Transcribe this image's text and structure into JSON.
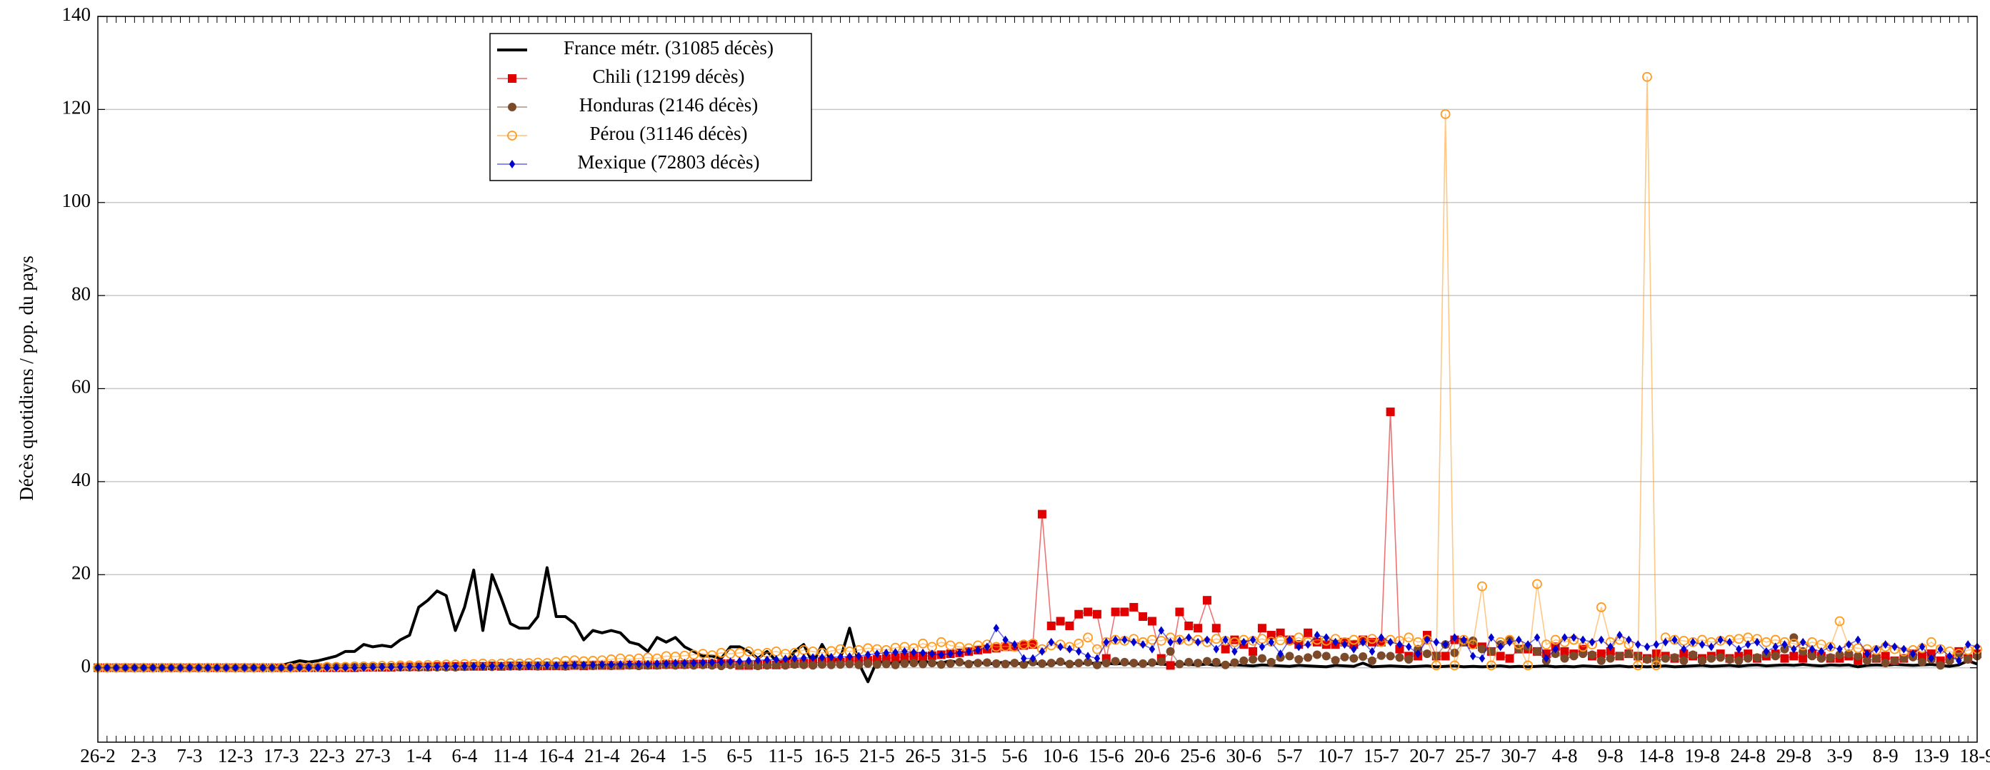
{
  "chart_data": {
    "type": "line",
    "ylabel": "Décès quotidiens / pop. du pays",
    "categories": [
      "26-2",
      null,
      null,
      null,
      null,
      "2-3",
      null,
      null,
      null,
      null,
      "7-3",
      null,
      null,
      null,
      null,
      "12-3",
      null,
      null,
      null,
      null,
      "17-3",
      null,
      null,
      null,
      null,
      "22-3",
      null,
      null,
      null,
      null,
      "27-3",
      null,
      null,
      null,
      null,
      "1-4",
      null,
      null,
      null,
      null,
      "6-4",
      null,
      null,
      null,
      null,
      "11-4",
      null,
      null,
      null,
      null,
      "16-4",
      null,
      null,
      null,
      null,
      "21-4",
      null,
      null,
      null,
      null,
      "26-4",
      null,
      null,
      null,
      null,
      "1-5",
      null,
      null,
      null,
      null,
      "6-5",
      null,
      null,
      null,
      null,
      "11-5",
      null,
      null,
      null,
      null,
      "16-5",
      null,
      null,
      null,
      null,
      "21-5",
      null,
      null,
      null,
      null,
      "26-5",
      null,
      null,
      null,
      null,
      "31-5",
      null,
      null,
      null,
      null,
      "5-6",
      null,
      null,
      null,
      null,
      "10-6",
      null,
      null,
      null,
      null,
      "15-6",
      null,
      null,
      null,
      null,
      "20-6",
      null,
      null,
      null,
      null,
      "25-6",
      null,
      null,
      null,
      null,
      "30-6",
      null,
      null,
      null,
      null,
      "5-7",
      null,
      null,
      null,
      null,
      "10-7",
      null,
      null,
      null,
      null,
      "15-7",
      null,
      null,
      null,
      null,
      "20-7",
      null,
      null,
      null,
      null,
      "25-7",
      null,
      null,
      null,
      null,
      "30-7",
      null,
      null,
      null,
      null,
      "4-8",
      null,
      null,
      null,
      null,
      "9-8",
      null,
      null,
      null,
      null,
      "14-8",
      null,
      null,
      null,
      null,
      "19-8",
      null,
      null,
      null,
      null,
      "24-8",
      null,
      null,
      null,
      null,
      "29-8",
      null,
      null,
      null,
      null,
      "3-9",
      null,
      null,
      null,
      null,
      "8-9",
      null,
      null,
      null,
      null,
      "13-9",
      null,
      null,
      null,
      null,
      "18-9"
    ],
    "ylim": [
      -16,
      140
    ],
    "yticks": [
      0,
      20,
      40,
      60,
      80,
      100,
      120,
      140
    ],
    "grid": true,
    "series": [
      {
        "name": "France métr. (31085 décès)",
        "color": "#000000",
        "marker": "none",
        "values": [
          0,
          0,
          0,
          0,
          0,
          0,
          0,
          0,
          0,
          0,
          0,
          0,
          0,
          0,
          0,
          0,
          0,
          0,
          0.2,
          0.3,
          0.5,
          1,
          1.5,
          1.2,
          1.5,
          2,
          2.5,
          3.5,
          3.5,
          5,
          4.5,
          4.8,
          4.5,
          6,
          7,
          13,
          14.5,
          16.5,
          15.5,
          8,
          13,
          21,
          8,
          20,
          15,
          9.5,
          8.5,
          8.5,
          11,
          21.5,
          11,
          11,
          9.5,
          6,
          8,
          7.5,
          8,
          7.5,
          5.5,
          5,
          3.5,
          6.5,
          5.5,
          6.5,
          4.5,
          3.5,
          2.5,
          2.5,
          2,
          4.5,
          4.5,
          3.5,
          2,
          3.5,
          1.5,
          1,
          3.5,
          5,
          1,
          5,
          1.5,
          2,
          8.5,
          1,
          -3,
          1.5,
          1,
          1,
          1.5,
          1,
          1.5,
          1,
          1,
          1.5,
          1,
          1,
          1.2,
          0.8,
          1,
          1.2,
          0.8,
          1,
          1.2,
          0.6,
          1,
          1.1,
          0.8,
          1,
          0.9,
          1,
          1,
          0.8,
          1,
          0.9,
          0.7,
          1,
          0.8,
          0.6,
          0.9,
          0.7,
          0.6,
          0.8,
          0.5,
          0.7,
          0.6,
          0.5,
          0.4,
          0.6,
          0.5,
          0.4,
          0.3,
          0.5,
          0.4,
          0.3,
          0.2,
          0.5,
          0.4,
          0.3,
          1,
          0.2,
          0.3,
          0.4,
          0.3,
          0.2,
          0.3,
          0.4,
          0.2,
          0.3,
          0.4,
          0.2,
          0.3,
          0.2,
          0.3,
          0.4,
          0.2,
          0.3,
          0.2,
          0.3,
          0.4,
          0.2,
          0.3,
          0.2,
          0.4,
          0.3,
          0.2,
          0.3,
          0.4,
          0.2,
          0.3,
          0.2,
          0.3,
          0.4,
          0.2,
          0.3,
          0.4,
          0.5,
          0.3,
          0.4,
          0.5,
          0.3,
          0.5,
          0.6,
          0.4,
          0.5,
          0.6,
          0.5,
          0.7,
          0.5,
          0.4,
          0.6,
          0.5,
          0.6,
          0.2,
          0.5,
          0.6,
          0.5,
          0.7,
          0.6,
          0.5,
          0.6,
          0.7,
          0.5,
          0.3,
          0.6,
          1.5,
          0.8
        ]
      },
      {
        "name": "Chili (12199 décès)",
        "color": "#e00000",
        "marker": "square",
        "values": [
          0,
          0,
          0,
          0,
          0,
          0,
          0,
          0,
          0,
          0,
          0,
          0,
          0,
          0,
          0,
          0,
          0,
          0,
          0,
          0,
          0,
          0,
          0,
          0,
          0,
          0,
          0,
          0,
          0,
          0.1,
          0.1,
          0.1,
          0.1,
          0.2,
          0.2,
          0.2,
          0.2,
          0.3,
          0.3,
          0.3,
          0.3,
          0.3,
          0.3,
          0.4,
          0.3,
          0.4,
          0.4,
          0.4,
          0.4,
          0.4,
          0.4,
          0.4,
          0.5,
          0.4,
          0.5,
          0.5,
          0.5,
          0.5,
          0.6,
          0.6,
          0.6,
          0.6,
          0.7,
          0.7,
          0.7,
          0.8,
          0.8,
          0.8,
          0.9,
          0.9,
          0.5,
          0.5,
          0.6,
          0.7,
          0.6,
          0.8,
          0.9,
          1,
          1,
          1.2,
          1.3,
          1.2,
          1.5,
          1.5,
          1.6,
          1.8,
          2,
          2.2,
          2.3,
          2.5,
          2.5,
          2.6,
          2.8,
          3,
          3.2,
          3.5,
          3.8,
          4,
          4.2,
          4.5,
          4.5,
          4.8,
          5,
          33,
          9,
          10,
          9,
          11.5,
          12,
          11.5,
          2,
          12,
          12,
          13,
          11,
          10,
          2,
          0.5,
          12,
          9,
          8.5,
          14.5,
          8.5,
          4,
          6,
          5,
          3.5,
          8.5,
          7,
          7.5,
          6,
          5,
          7.5,
          5.5,
          5,
          5,
          5.5,
          5,
          6,
          5.5,
          5.5,
          55,
          4,
          2.5,
          2.5,
          7,
          2.5,
          2.5,
          6,
          5.5,
          5,
          4.5,
          3.5,
          2.5,
          2,
          4,
          4,
          3.5,
          3,
          4.5,
          3.5,
          3,
          4,
          2.5,
          3,
          3.5,
          2.5,
          3,
          2.5,
          2,
          3,
          2.5,
          2,
          3,
          2.5,
          2,
          2.5,
          3,
          2,
          2.5,
          3,
          2,
          2.5,
          3,
          2,
          2.5,
          2,
          3,
          2.5,
          2,
          2,
          2.5,
          1.5,
          3,
          2,
          2.5,
          1.5,
          2,
          3,
          2.5,
          3,
          1.5,
          2,
          3.5,
          2,
          3
        ]
      },
      {
        "name": "Honduras (2146 décès)",
        "color": "#7b4a2a",
        "marker": "circle",
        "values": [
          0,
          0,
          0,
          0,
          0,
          0,
          0,
          0,
          0,
          0,
          0,
          0,
          0,
          0,
          0,
          0,
          0,
          0,
          0,
          0,
          0.1,
          0.1,
          0.1,
          0.1,
          0.1,
          0.1,
          0.1,
          0.1,
          0.1,
          0.1,
          0.1,
          0.1,
          0.1,
          0.1,
          0.1,
          0.1,
          0.1,
          0.1,
          0.1,
          0.1,
          0.2,
          0.3,
          0.3,
          0.2,
          0.3,
          0.3,
          0.3,
          0.4,
          0.3,
          0.4,
          0.4,
          0.3,
          0.5,
          0.4,
          0.4,
          0.5,
          0.4,
          0.5,
          0.5,
          0.4,
          0.5,
          0.5,
          0.6,
          0.5,
          0.6,
          0.5,
          0.6,
          0.5,
          0.4,
          0.6,
          0.5,
          0.6,
          0.4,
          0.5,
          0.6,
          0.5,
          0.7,
          0.6,
          0.5,
          0.7,
          0.6,
          0.7,
          0.8,
          0.6,
          0.9,
          0.7,
          0.8,
          0.6,
          0.9,
          1,
          0.8,
          1,
          0.7,
          0.9,
          1.2,
          0.8,
          1,
          1.1,
          0.9,
          0.8,
          1,
          0.7,
          1.2,
          0.9,
          1,
          1.3,
          0.8,
          1,
          1.2,
          0.6,
          1,
          1.4,
          1.2,
          1,
          0.9,
          1.1,
          1.3,
          3.5,
          0.8,
          1.2,
          1,
          1.4,
          1.2,
          0.6,
          1.1,
          1.5,
          1.8,
          2,
          1.2,
          2.2,
          2.5,
          1.8,
          2.2,
          2.8,
          2.5,
          1.6,
          2.3,
          2,
          2.4,
          1.5,
          2.6,
          2.5,
          2.2,
          1.8,
          4,
          3,
          2.5,
          5,
          3.2,
          5.5,
          5.8,
          4,
          3.5,
          5,
          6,
          4,
          4.5,
          3.5,
          1.5,
          3,
          2,
          2.5,
          3,
          2.8,
          1.5,
          2,
          2.5,
          3,
          2.4,
          1.8,
          1.5,
          2,
          2.2,
          1.5,
          2.8,
          1.5,
          2,
          2.2,
          1.8,
          1.5,
          2,
          2.2,
          3,
          2.5,
          4,
          6.5,
          3.5,
          2.5,
          2,
          2.2,
          2.8,
          3,
          2.5,
          1.5,
          2,
          1,
          1.5,
          2,
          2.3,
          1.2,
          1.8,
          0.5,
          1.5,
          2.5,
          1.8,
          2.5
        ]
      },
      {
        "name": "Pérou (31146 décès)",
        "color": "#ff9a1f",
        "marker": "open-circle",
        "values": [
          0,
          0,
          0,
          0,
          0,
          0,
          0,
          0,
          0,
          0,
          0,
          0,
          0,
          0,
          0,
          0,
          0,
          0,
          0,
          0,
          0,
          0,
          0.1,
          0.1,
          0.1,
          0.2,
          0.2,
          0.2,
          0.3,
          0.3,
          0.3,
          0.4,
          0.4,
          0.5,
          0.5,
          0.5,
          0.6,
          0.6,
          0.7,
          0.7,
          0.8,
          0.8,
          0.9,
          0.8,
          0.9,
          1,
          0.9,
          1,
          1.1,
          1,
          1.2,
          1.5,
          1.6,
          1.4,
          1.5,
          1.6,
          1.8,
          2,
          1.8,
          2,
          2.2,
          2,
          2.5,
          2.4,
          2.6,
          2.8,
          3,
          2.7,
          3.2,
          3,
          3.2,
          3.5,
          3,
          3.2,
          3.5,
          3,
          3.2,
          3.8,
          3.5,
          3.2,
          3.6,
          4,
          3.5,
          3.8,
          4.2,
          4,
          3.8,
          4.3,
          4.5,
          4.2,
          5.2,
          4.5,
          5.5,
          4.8,
          4.5,
          4.2,
          4.8,
          5,
          4.5,
          4.6,
          4.5,
          5,
          5.2,
          4,
          4.8,
          5,
          4.5,
          5.2,
          6.5,
          4,
          5.5,
          6,
          5.8,
          6.2,
          5.5,
          6,
          5.8,
          6.5,
          6,
          5.8,
          6,
          5.5,
          6.2,
          5.8,
          5.5,
          6,
          5.8,
          6.2,
          5.6,
          5.9,
          5.8,
          6.5,
          5.5,
          6,
          5.8,
          6.2,
          5.5,
          6,
          5.8,
          6.2,
          5.5,
          6,
          5.8,
          6.5,
          5.5,
          6,
          0.5,
          119,
          0.5,
          6,
          5,
          17.5,
          0.5,
          5.5,
          6,
          5,
          0.5,
          18,
          5,
          6,
          5.5,
          6,
          4.5,
          5,
          13,
          5.5,
          6,
          5,
          0.5,
          127,
          0.5,
          6.5,
          6,
          5.8,
          5.5,
          6,
          5.5,
          5.8,
          6,
          6.2,
          6.5,
          6.2,
          5.5,
          6,
          5.5,
          5.2,
          4.8,
          5.5,
          5,
          4.5,
          10,
          4.5,
          4.2,
          4,
          3.8,
          4.5,
          4,
          3.5,
          3.8,
          4.2,
          5.5,
          4,
          3.5,
          3,
          3.8,
          4
        ]
      },
      {
        "name": "Mexique (72803 décès)",
        "color": "#0000d0",
        "marker": "diamond",
        "values": [
          0,
          0,
          0,
          0,
          0,
          0,
          0,
          0,
          0,
          0,
          0,
          0,
          0,
          0,
          0,
          0,
          0,
          0,
          0,
          0,
          0,
          0,
          0,
          0,
          0,
          0,
          0,
          0,
          0,
          0,
          0.1,
          0.1,
          0.1,
          0.1,
          0.2,
          0.2,
          0.2,
          0.2,
          0.3,
          0.3,
          0.3,
          0.3,
          0.3,
          0.3,
          0.4,
          0.4,
          0.4,
          0.4,
          0.5,
          0.5,
          0.5,
          0.5,
          0.6,
          0.6,
          0.6,
          0.7,
          0.7,
          0.7,
          0.8,
          0.8,
          0.8,
          0.9,
          0.9,
          1,
          1,
          1,
          1.1,
          1.1,
          1.2,
          1.3,
          1.4,
          1.5,
          1.6,
          1.7,
          1.8,
          1.9,
          2,
          2.1,
          2.2,
          2.2,
          2.3,
          2.3,
          2.4,
          2.5,
          2.8,
          3,
          3.2,
          3.3,
          3.5,
          3.3,
          3.2,
          3,
          2.8,
          3,
          3.2,
          3.5,
          3.8,
          4.5,
          8.5,
          6,
          5,
          2,
          2,
          3.5,
          5.5,
          4.5,
          4,
          3.5,
          2.5,
          2,
          5.5,
          6,
          6,
          5.5,
          5,
          4,
          8,
          5.5,
          5.8,
          6.5,
          5.5,
          6,
          4,
          6,
          3.5,
          5.5,
          6,
          4.5,
          5.5,
          3,
          6,
          4.5,
          5,
          7,
          6.5,
          5.5,
          5,
          4,
          5.5,
          3.5,
          6.5,
          5.5,
          5,
          4.5,
          3,
          6,
          5.5,
          5,
          6.5,
          6,
          2.5,
          2,
          6.5,
          4.5,
          5.5,
          6,
          5,
          6.5,
          2,
          4,
          6.5,
          6.5,
          6,
          5.5,
          6,
          4.5,
          7,
          6,
          5,
          4.5,
          5,
          5.5,
          6,
          4,
          5.5,
          5,
          4.5,
          6,
          5.5,
          4,
          5,
          5.5,
          3.5,
          4.5,
          5,
          4,
          5.5,
          4,
          3.5,
          4.5,
          4,
          5,
          6,
          3,
          4,
          5,
          4.5,
          4,
          3,
          4.5,
          2,
          4,
          2.5,
          1.5,
          5,
          4.5
        ]
      }
    ]
  }
}
